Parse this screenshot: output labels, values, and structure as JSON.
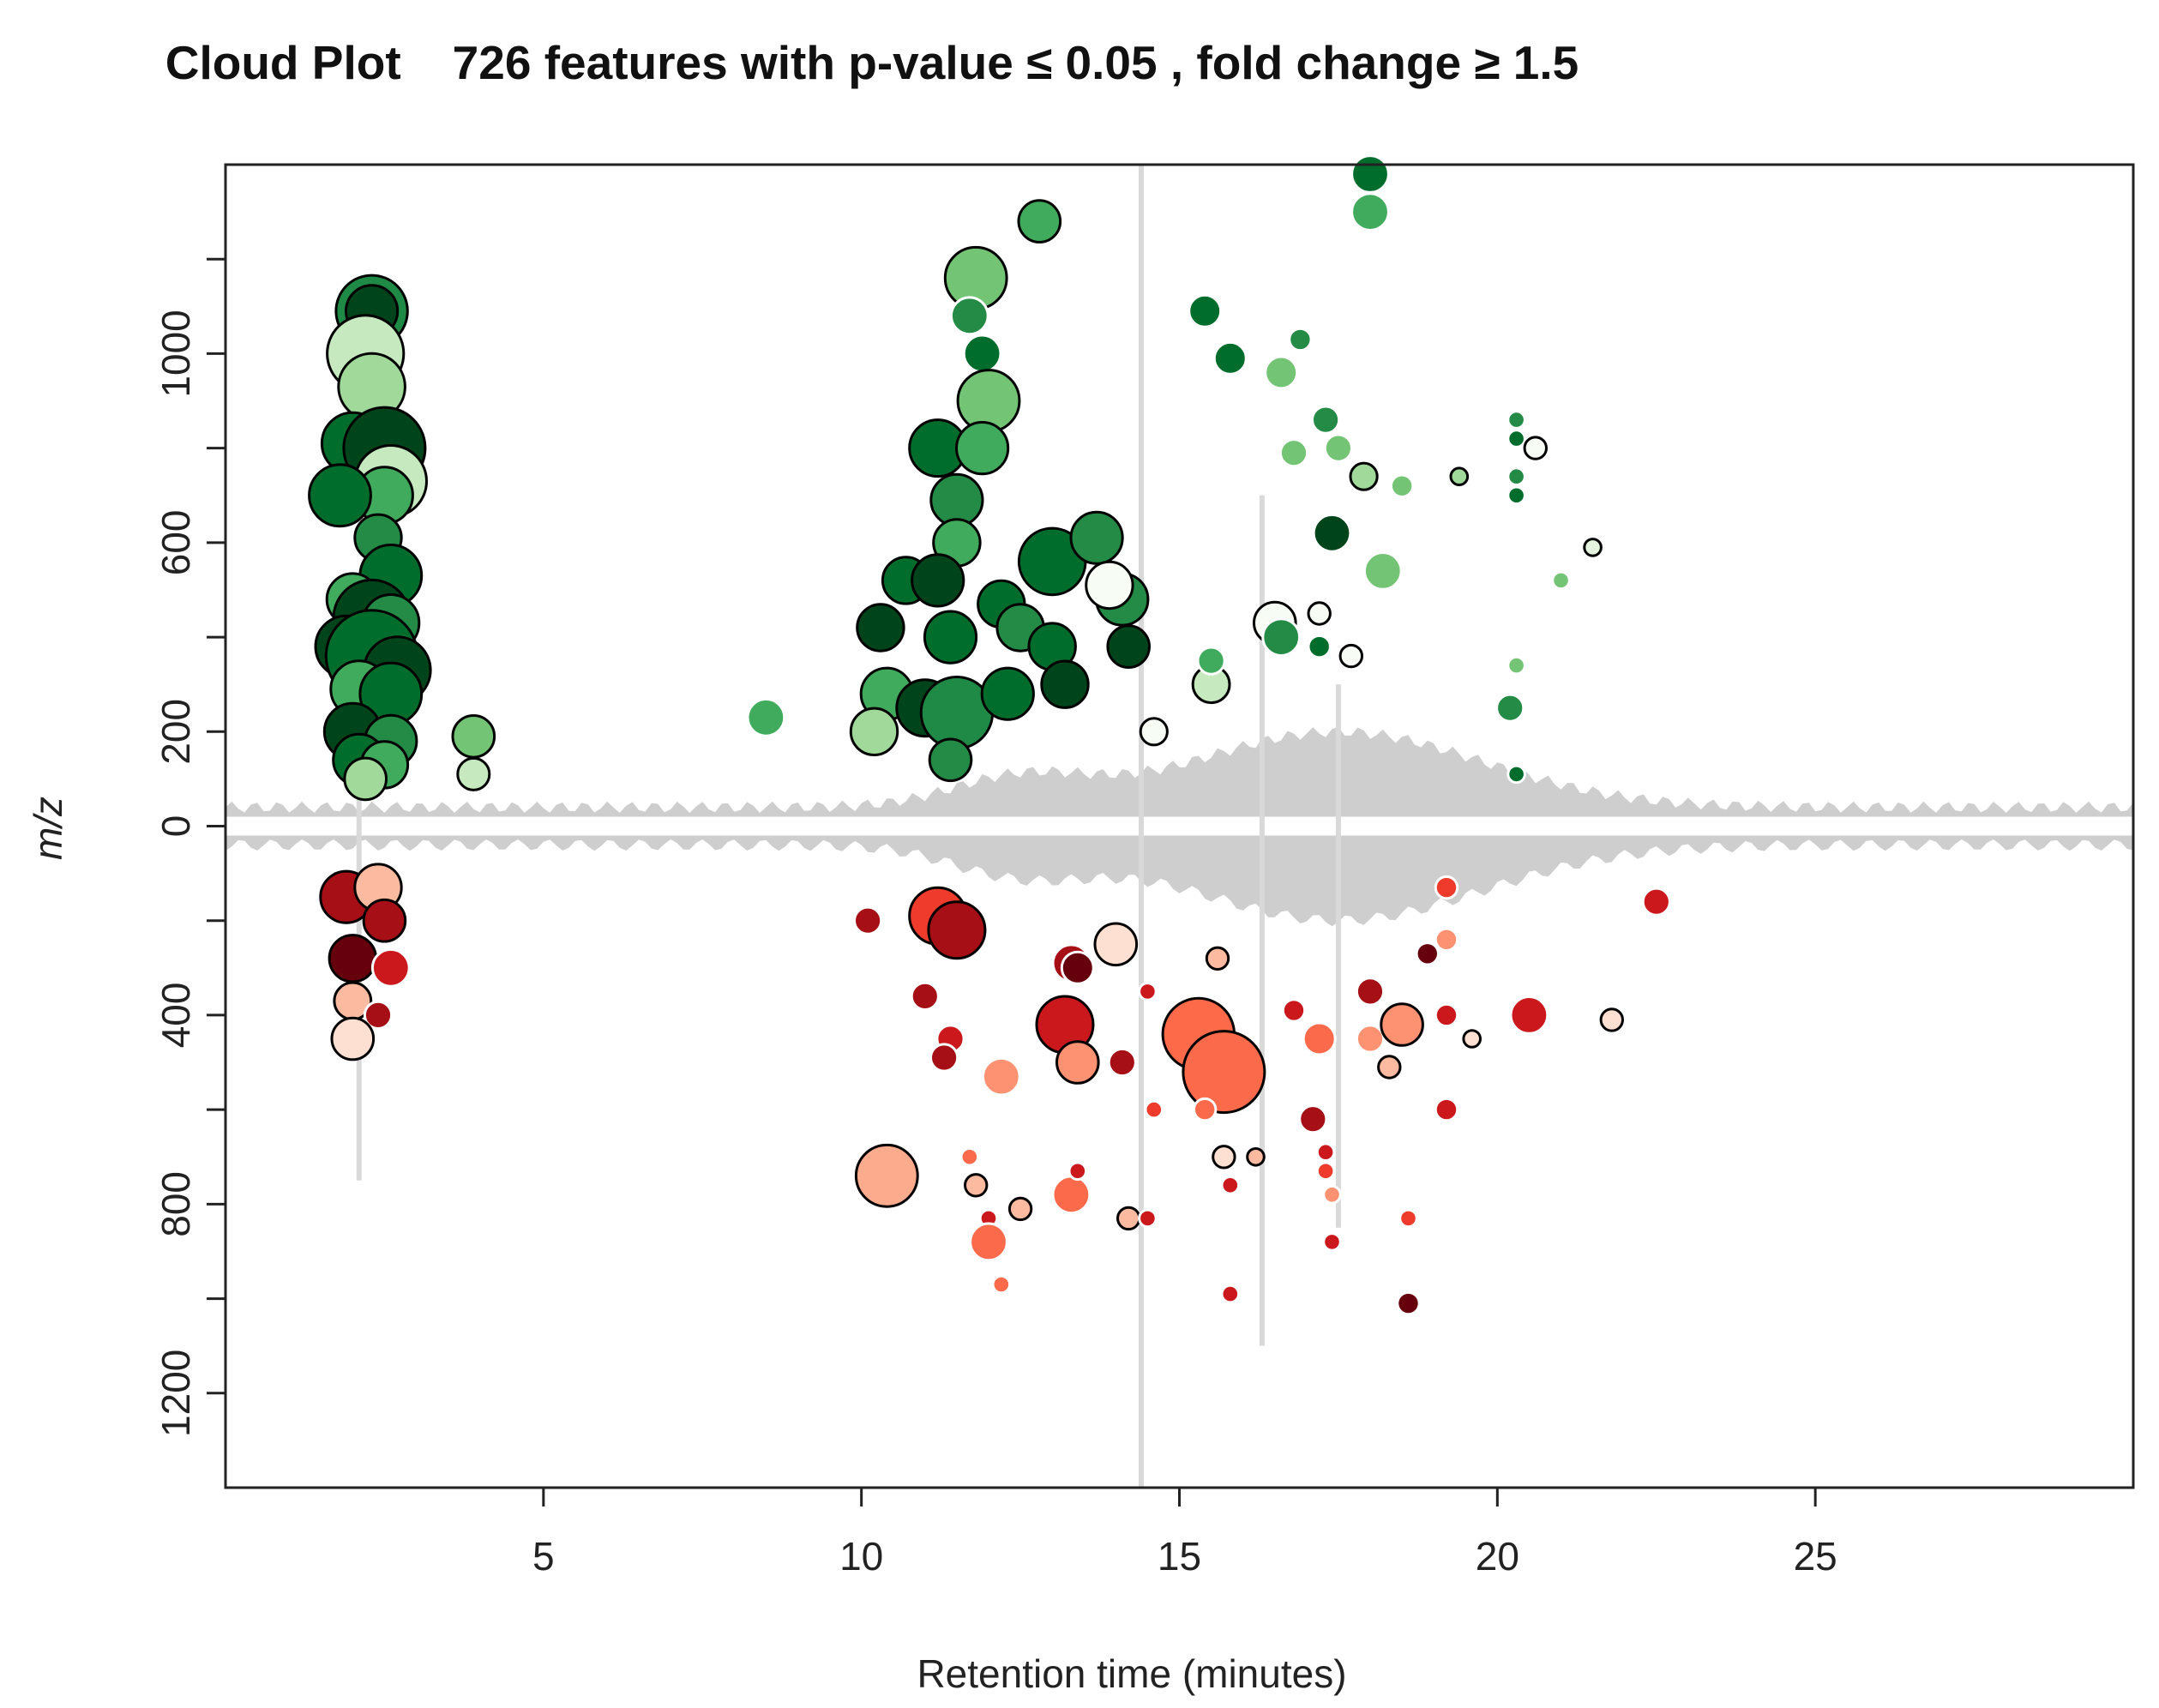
{
  "chart_data": {
    "type": "scatter",
    "title": "Cloud Plot",
    "subtitle": "726 features with p-value ≤ 0.05 , fold change ≥ 1.5",
    "xlabel": "Retention time (minutes)",
    "ylabel": "m/z",
    "xlim": [
      0,
      30
    ],
    "ylim": [
      -1400,
      1400
    ],
    "x_ticks": [
      5,
      10,
      15,
      20,
      25
    ],
    "x_tick_labels": [
      "5",
      "10",
      "15",
      "20",
      "25"
    ],
    "y_ticks": [
      1000,
      600,
      200,
      0,
      -400,
      -800,
      -1200
    ],
    "y_tick_labels": [
      "1000",
      "600",
      "200",
      "0",
      "400",
      "800",
      "1200"
    ],
    "grid": false,
    "legend": "none",
    "colors": {
      "up_dark": "#00441b",
      "up_mid": "#1f8a45",
      "up_light": "#74c476",
      "up_pale": "#c7e9c0",
      "down_dark": "#8b0000",
      "down_mid": "#d62828",
      "down_light": "#fc8d59",
      "down_pale": "#fcbba1",
      "tic": "#bdbdbd",
      "outline": "#000000"
    },
    "series": [
      {
        "group": "increased",
        "points": [
          {
            "x": 2.3,
            "y": 1090,
            "s": 26,
            "c": "#1f8a45"
          },
          {
            "x": 2.3,
            "y": 1090,
            "s": 18,
            "c": "#00441b"
          },
          {
            "x": 2.2,
            "y": 1000,
            "s": 28,
            "c": "#c7e9c0"
          },
          {
            "x": 2.3,
            "y": 930,
            "s": 24,
            "c": "#a1d99b"
          },
          {
            "x": 2.0,
            "y": 810,
            "s": 22,
            "c": "#006d2c"
          },
          {
            "x": 2.5,
            "y": 800,
            "s": 30,
            "c": "#00441b"
          },
          {
            "x": 2.6,
            "y": 730,
            "s": 26,
            "c": "#c7e9c0"
          },
          {
            "x": 2.5,
            "y": 700,
            "s": 20,
            "c": "#41ab5d"
          },
          {
            "x": 1.8,
            "y": 700,
            "s": 22,
            "c": "#006d2c"
          },
          {
            "x": 2.4,
            "y": 610,
            "s": 16,
            "c": "#238b45"
          },
          {
            "x": 2.6,
            "y": 530,
            "s": 22,
            "c": "#006d2c"
          },
          {
            "x": 2.0,
            "y": 480,
            "s": 18,
            "c": "#41ab5d"
          },
          {
            "x": 2.3,
            "y": 440,
            "s": 28,
            "c": "#00441b"
          },
          {
            "x": 2.6,
            "y": 430,
            "s": 20,
            "c": "#238b45"
          },
          {
            "x": 1.9,
            "y": 380,
            "s": 22,
            "c": "#00441b"
          },
          {
            "x": 2.3,
            "y": 360,
            "s": 34,
            "c": "#006d2c"
          },
          {
            "x": 2.7,
            "y": 330,
            "s": 24,
            "c": "#00441b"
          },
          {
            "x": 2.1,
            "y": 290,
            "s": 20,
            "c": "#41ab5d"
          },
          {
            "x": 2.6,
            "y": 280,
            "s": 22,
            "c": "#006d2c"
          },
          {
            "x": 2.0,
            "y": 200,
            "s": 20,
            "c": "#00441b"
          },
          {
            "x": 2.6,
            "y": 180,
            "s": 18,
            "c": "#238b45"
          },
          {
            "x": 2.1,
            "y": 140,
            "s": 18,
            "c": "#006d2c"
          },
          {
            "x": 2.5,
            "y": 130,
            "s": 16,
            "c": "#41ab5d"
          },
          {
            "x": 2.2,
            "y": 100,
            "s": 14,
            "c": "#a1d99b"
          },
          {
            "x": 3.9,
            "y": 190,
            "s": 14,
            "c": "#74c476"
          },
          {
            "x": 3.9,
            "y": 110,
            "s": 10,
            "c": "#c7e9c0"
          },
          {
            "x": 8.5,
            "y": 230,
            "s": 12,
            "c": "#41ab5d"
          },
          {
            "x": 11.8,
            "y": 1160,
            "s": 22,
            "c": "#74c476"
          },
          {
            "x": 12.8,
            "y": 1280,
            "s": 14,
            "c": "#41ab5d"
          },
          {
            "x": 11.7,
            "y": 1080,
            "s": 12,
            "c": "#238b45"
          },
          {
            "x": 11.9,
            "y": 1000,
            "s": 12,
            "c": "#006d2c"
          },
          {
            "x": 12.0,
            "y": 900,
            "s": 22,
            "c": "#74c476"
          },
          {
            "x": 11.2,
            "y": 800,
            "s": 20,
            "c": "#006d2c"
          },
          {
            "x": 11.9,
            "y": 800,
            "s": 18,
            "c": "#41ab5d"
          },
          {
            "x": 11.5,
            "y": 690,
            "s": 18,
            "c": "#238b45"
          },
          {
            "x": 11.5,
            "y": 600,
            "s": 16,
            "c": "#41ab5d"
          },
          {
            "x": 10.7,
            "y": 520,
            "s": 16,
            "c": "#006d2c"
          },
          {
            "x": 11.2,
            "y": 520,
            "s": 18,
            "c": "#00441b"
          },
          {
            "x": 12.2,
            "y": 470,
            "s": 16,
            "c": "#006d2c"
          },
          {
            "x": 13.0,
            "y": 560,
            "s": 24,
            "c": "#006d2c"
          },
          {
            "x": 13.7,
            "y": 610,
            "s": 18,
            "c": "#238b45"
          },
          {
            "x": 14.1,
            "y": 480,
            "s": 18,
            "c": "#238b45"
          },
          {
            "x": 10.3,
            "y": 420,
            "s": 16,
            "c": "#00441b"
          },
          {
            "x": 11.4,
            "y": 400,
            "s": 18,
            "c": "#006d2c"
          },
          {
            "x": 12.5,
            "y": 420,
            "s": 16,
            "c": "#238b45"
          },
          {
            "x": 13.0,
            "y": 380,
            "s": 16,
            "c": "#006d2c"
          },
          {
            "x": 10.4,
            "y": 280,
            "s": 18,
            "c": "#41ab5d"
          },
          {
            "x": 11.0,
            "y": 250,
            "s": 20,
            "c": "#00441b"
          },
          {
            "x": 11.5,
            "y": 240,
            "s": 26,
            "c": "#1f8a45"
          },
          {
            "x": 12.3,
            "y": 280,
            "s": 18,
            "c": "#006d2c"
          },
          {
            "x": 13.2,
            "y": 300,
            "s": 16,
            "c": "#00441b"
          },
          {
            "x": 10.2,
            "y": 200,
            "s": 16,
            "c": "#a1d99b"
          },
          {
            "x": 11.4,
            "y": 140,
            "s": 14,
            "c": "#238b45"
          },
          {
            "x": 14.2,
            "y": 380,
            "s": 14,
            "c": "#00441b"
          },
          {
            "x": 13.9,
            "y": 510,
            "s": 16,
            "c": "#f7fcf5"
          },
          {
            "x": 15.4,
            "y": 1090,
            "s": 10,
            "c": "#006d2c"
          },
          {
            "x": 15.8,
            "y": 990,
            "s": 10,
            "c": "#006d2c"
          },
          {
            "x": 16.6,
            "y": 960,
            "s": 10,
            "c": "#74c476"
          },
          {
            "x": 16.9,
            "y": 1030,
            "s": 6,
            "c": "#238b45"
          },
          {
            "x": 17.3,
            "y": 860,
            "s": 8,
            "c": "#238b45"
          },
          {
            "x": 16.8,
            "y": 790,
            "s": 8,
            "c": "#74c476"
          },
          {
            "x": 18.0,
            "y": 1380,
            "s": 12,
            "c": "#006d2c"
          },
          {
            "x": 18.0,
            "y": 1300,
            "s": 12,
            "c": "#41ab5d"
          },
          {
            "x": 17.5,
            "y": 800,
            "s": 8,
            "c": "#74c476"
          },
          {
            "x": 17.9,
            "y": 740,
            "s": 8,
            "c": "#a1d99b"
          },
          {
            "x": 18.5,
            "y": 720,
            "s": 6,
            "c": "#74c476"
          },
          {
            "x": 17.4,
            "y": 620,
            "s": 12,
            "c": "#00441b"
          },
          {
            "x": 18.2,
            "y": 540,
            "s": 12,
            "c": "#74c476"
          },
          {
            "x": 16.5,
            "y": 430,
            "s": 14,
            "c": "#f7fcf5"
          },
          {
            "x": 16.6,
            "y": 400,
            "s": 12,
            "c": "#238b45"
          },
          {
            "x": 17.2,
            "y": 450,
            "s": 6,
            "c": "#f7fcf5"
          },
          {
            "x": 17.7,
            "y": 360,
            "s": 6,
            "c": "#f7fcf5"
          },
          {
            "x": 17.2,
            "y": 380,
            "s": 6,
            "c": "#006d2c"
          },
          {
            "x": 15.5,
            "y": 300,
            "s": 12,
            "c": "#c7e9c0"
          },
          {
            "x": 15.5,
            "y": 350,
            "s": 8,
            "c": "#41ab5d"
          },
          {
            "x": 14.6,
            "y": 200,
            "s": 8,
            "c": "#f7fcf5"
          },
          {
            "x": 20.3,
            "y": 860,
            "s": 4,
            "c": "#238b45"
          },
          {
            "x": 20.3,
            "y": 820,
            "s": 4,
            "c": "#006d2c"
          },
          {
            "x": 20.6,
            "y": 800,
            "s": 6,
            "c": "#f7fcf5"
          },
          {
            "x": 20.3,
            "y": 740,
            "s": 4,
            "c": "#238b45"
          },
          {
            "x": 20.3,
            "y": 700,
            "s": 4,
            "c": "#006d2c"
          },
          {
            "x": 19.4,
            "y": 740,
            "s": 4,
            "c": "#a1d99b"
          },
          {
            "x": 21.0,
            "y": 520,
            "s": 4,
            "c": "#74c476"
          },
          {
            "x": 21.5,
            "y": 590,
            "s": 4,
            "c": "#e5f5e0"
          },
          {
            "x": 20.3,
            "y": 340,
            "s": 4,
            "c": "#74c476"
          },
          {
            "x": 20.2,
            "y": 250,
            "s": 8,
            "c": "#238b45"
          },
          {
            "x": 20.3,
            "y": 110,
            "s": 4,
            "c": "#006d2c"
          }
        ]
      },
      {
        "group": "decreased",
        "points": [
          {
            "x": 1.9,
            "y": -150,
            "s": 18,
            "c": "#a50f15"
          },
          {
            "x": 2.4,
            "y": -130,
            "s": 16,
            "c": "#fcbba1"
          },
          {
            "x": 2.5,
            "y": -200,
            "s": 14,
            "c": "#a50f15"
          },
          {
            "x": 2.0,
            "y": -280,
            "s": 16,
            "c": "#67000d"
          },
          {
            "x": 2.6,
            "y": -300,
            "s": 12,
            "c": "#cb181d"
          },
          {
            "x": 2.0,
            "y": -370,
            "s": 12,
            "c": "#fcbba1"
          },
          {
            "x": 2.4,
            "y": -400,
            "s": 8,
            "c": "#a50f15"
          },
          {
            "x": 2.0,
            "y": -450,
            "s": 14,
            "c": "#fee0d2"
          },
          {
            "x": 10.1,
            "y": -200,
            "s": 8,
            "c": "#a50f15"
          },
          {
            "x": 11.2,
            "y": -190,
            "s": 20,
            "c": "#ef3b2c"
          },
          {
            "x": 11.5,
            "y": -220,
            "s": 20,
            "c": "#a50f15"
          },
          {
            "x": 11.0,
            "y": -360,
            "s": 8,
            "c": "#a50f15"
          },
          {
            "x": 11.4,
            "y": -450,
            "s": 8,
            "c": "#cb181d"
          },
          {
            "x": 11.3,
            "y": -490,
            "s": 8,
            "c": "#a50f15"
          },
          {
            "x": 12.2,
            "y": -530,
            "s": 12,
            "c": "#fc9272"
          },
          {
            "x": 13.3,
            "y": -290,
            "s": 12,
            "c": "#a50f15"
          },
          {
            "x": 13.4,
            "y": -300,
            "s": 10,
            "c": "#67000d"
          },
          {
            "x": 14.0,
            "y": -250,
            "s": 14,
            "c": "#fee0d2"
          },
          {
            "x": 13.2,
            "y": -420,
            "s": 20,
            "c": "#cb181d"
          },
          {
            "x": 13.4,
            "y": -500,
            "s": 14,
            "c": "#fc9272"
          },
          {
            "x": 14.1,
            "y": -500,
            "s": 8,
            "c": "#a50f15"
          },
          {
            "x": 14.6,
            "y": -600,
            "s": 4,
            "c": "#ef3b2c"
          },
          {
            "x": 14.5,
            "y": -350,
            "s": 4,
            "c": "#cb181d"
          },
          {
            "x": 15.3,
            "y": -440,
            "s": 26,
            "c": "#fc6a4a"
          },
          {
            "x": 15.7,
            "y": -520,
            "s": 30,
            "c": "#fb6a4a"
          },
          {
            "x": 15.4,
            "y": -600,
            "s": 6,
            "c": "#fb6a4a"
          },
          {
            "x": 15.6,
            "y": -280,
            "s": 6,
            "c": "#fcbba1"
          },
          {
            "x": 15.7,
            "y": -700,
            "s": 6,
            "c": "#fee0d2"
          },
          {
            "x": 15.8,
            "y": -760,
            "s": 4,
            "c": "#cb181d"
          },
          {
            "x": 16.2,
            "y": -700,
            "s": 4,
            "c": "#fcbba1"
          },
          {
            "x": 16.8,
            "y": -390,
            "s": 6,
            "c": "#cb181d"
          },
          {
            "x": 17.2,
            "y": -450,
            "s": 10,
            "c": "#fb6a4a"
          },
          {
            "x": 17.1,
            "y": -620,
            "s": 8,
            "c": "#a50f15"
          },
          {
            "x": 17.3,
            "y": -690,
            "s": 4,
            "c": "#cb181d"
          },
          {
            "x": 17.3,
            "y": -730,
            "s": 4,
            "c": "#ef3b2c"
          },
          {
            "x": 17.4,
            "y": -780,
            "s": 4,
            "c": "#fc9272"
          },
          {
            "x": 17.4,
            "y": -880,
            "s": 4,
            "c": "#cb181d"
          },
          {
            "x": 18.0,
            "y": -350,
            "s": 8,
            "c": "#a50f15"
          },
          {
            "x": 18.0,
            "y": -450,
            "s": 8,
            "c": "#fc9272"
          },
          {
            "x": 18.5,
            "y": -420,
            "s": 14,
            "c": "#fc9272"
          },
          {
            "x": 18.3,
            "y": -510,
            "s": 6,
            "c": "#fcbba1"
          },
          {
            "x": 18.6,
            "y": -830,
            "s": 4,
            "c": "#ef3b2c"
          },
          {
            "x": 18.6,
            "y": -1010,
            "s": 6,
            "c": "#67000d"
          },
          {
            "x": 18.9,
            "y": -270,
            "s": 6,
            "c": "#67000d"
          },
          {
            "x": 19.2,
            "y": -130,
            "s": 6,
            "c": "#ef3b2c"
          },
          {
            "x": 19.2,
            "y": -240,
            "s": 6,
            "c": "#fc9272"
          },
          {
            "x": 19.2,
            "y": -400,
            "s": 6,
            "c": "#cb181d"
          },
          {
            "x": 19.6,
            "y": -450,
            "s": 4,
            "c": "#fee0d2"
          },
          {
            "x": 19.2,
            "y": -600,
            "s": 6,
            "c": "#cb181d"
          },
          {
            "x": 20.5,
            "y": -400,
            "s": 12,
            "c": "#cb181d"
          },
          {
            "x": 21.8,
            "y": -410,
            "s": 6,
            "c": "#fee0d2"
          },
          {
            "x": 22.5,
            "y": -160,
            "s": 8,
            "c": "#cb181d"
          },
          {
            "x": 10.4,
            "y": -740,
            "s": 22,
            "c": "#fcab8d"
          },
          {
            "x": 11.7,
            "y": -700,
            "s": 4,
            "c": "#fb6a4a"
          },
          {
            "x": 11.8,
            "y": -760,
            "s": 6,
            "c": "#fcbba1"
          },
          {
            "x": 12.0,
            "y": -830,
            "s": 4,
            "c": "#cb181d"
          },
          {
            "x": 12.0,
            "y": -880,
            "s": 12,
            "c": "#fb6a4a"
          },
          {
            "x": 12.2,
            "y": -970,
            "s": 4,
            "c": "#fb6a4a"
          },
          {
            "x": 12.5,
            "y": -810,
            "s": 6,
            "c": "#fcbba1"
          },
          {
            "x": 13.3,
            "y": -780,
            "s": 12,
            "c": "#fb6a4a"
          },
          {
            "x": 13.4,
            "y": -730,
            "s": 4,
            "c": "#cb181d"
          },
          {
            "x": 14.2,
            "y": -830,
            "s": 6,
            "c": "#fcbba1"
          },
          {
            "x": 14.5,
            "y": -830,
            "s": 4,
            "c": "#cb181d"
          },
          {
            "x": 15.8,
            "y": -990,
            "s": 4,
            "c": "#cb181d"
          }
        ]
      }
    ]
  }
}
